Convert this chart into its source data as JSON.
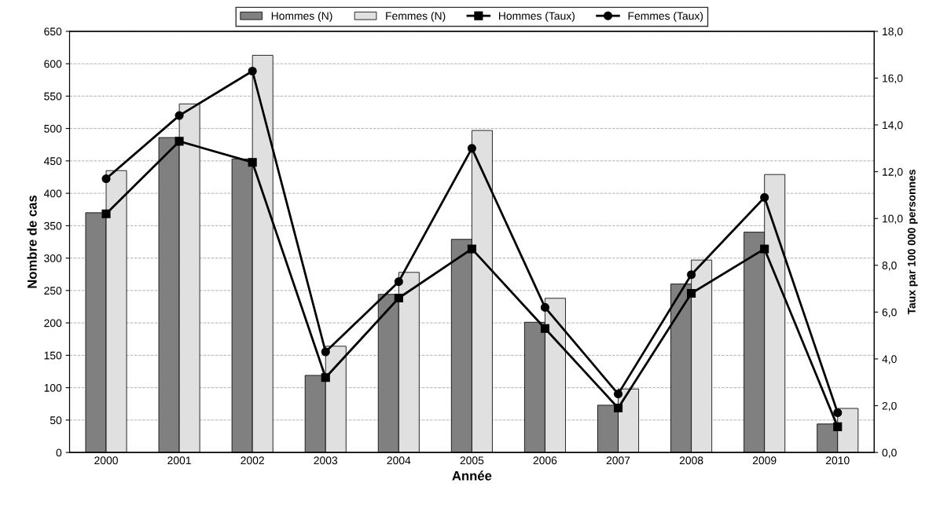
{
  "chart_data": {
    "type": "bar",
    "xlabel": "Année",
    "ylabel": "Nombre de cas",
    "y2label": "Taux par 100 000 personnes",
    "categories": [
      "2000",
      "2001",
      "2002",
      "2003",
      "2004",
      "2005",
      "2006",
      "2007",
      "2008",
      "2009",
      "2010"
    ],
    "series": [
      {
        "name": "Hommes (N)",
        "color": "#808080",
        "values": [
          370,
          486,
          453,
          119,
          244,
          329,
          201,
          73,
          260,
          340,
          44
        ]
      },
      {
        "name": "Femmes (N)",
        "color": "#e0e0e0",
        "values": [
          435,
          538,
          613,
          164,
          278,
          497,
          238,
          98,
          297,
          429,
          68
        ]
      },
      {
        "name": "Hommes (Taux)",
        "type": "line",
        "axis": "y2",
        "marker": "square",
        "color": "#000000",
        "values": [
          10.2,
          13.3,
          12.4,
          3.2,
          6.6,
          8.7,
          5.3,
          1.9,
          6.8,
          8.7,
          1.1
        ]
      },
      {
        "name": "Femmes (Taux)",
        "type": "line",
        "axis": "y2",
        "marker": "circle",
        "color": "#000000",
        "values": [
          11.7,
          14.4,
          16.3,
          4.3,
          7.3,
          13.0,
          6.2,
          2.5,
          7.6,
          10.9,
          1.7
        ]
      }
    ],
    "ylim": [
      0,
      650
    ],
    "yticks": [
      0,
      50,
      100,
      150,
      200,
      250,
      300,
      350,
      400,
      450,
      500,
      550,
      600,
      650
    ],
    "y2lim": [
      0,
      18
    ],
    "y2ticks": [
      {
        "value": 0,
        "label": "0,0"
      },
      {
        "value": 2,
        "label": "2,0"
      },
      {
        "value": 4,
        "label": "4,0"
      },
      {
        "value": 6,
        "label": "6,0"
      },
      {
        "value": 8,
        "label": "8,0"
      },
      {
        "value": 10,
        "label": "10,0"
      },
      {
        "value": 12,
        "label": "12,0"
      },
      {
        "value": 14,
        "label": "14,0"
      },
      {
        "value": 16,
        "label": "16,0"
      },
      {
        "value": 18,
        "label": "18,0"
      }
    ],
    "grid": "y",
    "legend": "top",
    "line_style": "solid"
  }
}
